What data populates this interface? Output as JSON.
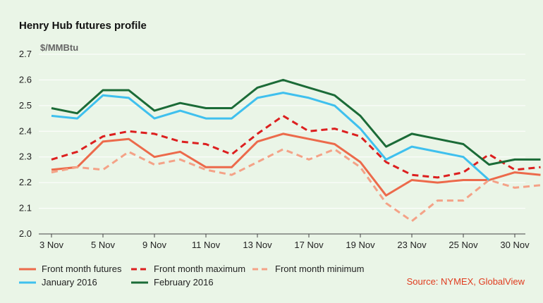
{
  "title": "Henry Hub futures profile",
  "source": "Source: NYMEX, GlobalView",
  "chart_data": {
    "type": "line",
    "title": "Henry Hub futures profile",
    "ylabel": "$/MMBtu",
    "xlabel": "",
    "ylim": [
      2.0,
      2.7
    ],
    "yticks": [
      "2.0",
      "2.1",
      "2.2",
      "2.3",
      "2.4",
      "2.5",
      "2.6",
      "2.7"
    ],
    "x_tick_labels": [
      "3 Nov",
      "5 Nov",
      "9 Nov",
      "11 Nov",
      "13 Nov",
      "17 Nov",
      "19 Nov",
      "23 Nov",
      "25 Nov",
      "30 Nov"
    ],
    "x_tick_index": [
      0,
      2,
      4,
      6,
      8,
      10,
      12,
      14,
      16,
      18
    ],
    "grid": "horizontal",
    "legend": "bottom",
    "series": [
      {
        "name": "Front month futures",
        "color": "#ec6a4b",
        "dash": "solid",
        "values": [
          2.25,
          2.26,
          2.36,
          2.37,
          2.3,
          2.32,
          2.26,
          2.26,
          2.36,
          2.39,
          2.37,
          2.35,
          2.28,
          2.15,
          2.21,
          2.2,
          2.21,
          2.21,
          2.24,
          2.23
        ]
      },
      {
        "name": "Front month maximum",
        "color": "#dc1f1f",
        "dash": "dashed",
        "values": [
          2.29,
          2.32,
          2.38,
          2.4,
          2.39,
          2.36,
          2.35,
          2.31,
          2.39,
          2.46,
          2.4,
          2.41,
          2.38,
          2.28,
          2.23,
          2.22,
          2.24,
          2.31,
          2.25,
          2.26
        ]
      },
      {
        "name": "Front month minimum",
        "color": "#f4a287",
        "dash": "dashed",
        "values": [
          2.24,
          2.26,
          2.25,
          2.32,
          2.27,
          2.29,
          2.25,
          2.23,
          2.28,
          2.33,
          2.29,
          2.33,
          2.26,
          2.12,
          2.05,
          2.13,
          2.13,
          2.21,
          2.18,
          2.19
        ]
      },
      {
        "name": "January 2016",
        "color": "#3fc0ee",
        "dash": "solid",
        "values": [
          2.46,
          2.45,
          2.54,
          2.53,
          2.45,
          2.48,
          2.45,
          2.45,
          2.53,
          2.55,
          2.53,
          2.5,
          2.41,
          2.29,
          2.34,
          2.32,
          2.3,
          2.21,
          null,
          null
        ]
      },
      {
        "name": "February 2016",
        "color": "#1b6b37",
        "dash": "solid",
        "values": [
          2.49,
          2.47,
          2.56,
          2.56,
          2.48,
          2.51,
          2.49,
          2.49,
          2.57,
          2.6,
          2.57,
          2.54,
          2.46,
          2.34,
          2.39,
          2.37,
          2.35,
          2.27,
          2.29,
          2.29
        ]
      }
    ]
  }
}
